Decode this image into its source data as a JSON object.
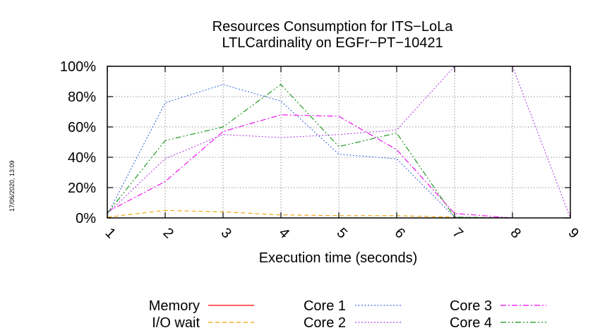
{
  "timestamp": "17/06/2020, 13:09",
  "chart_data": {
    "type": "line",
    "title": [
      "Resources Consumption for ITS−LoLa",
      "LTLCardinality on EGFr−PT−10421"
    ],
    "xlabel": "Execution time (seconds)",
    "ylabel": "",
    "x": [
      1,
      2,
      3,
      4,
      5,
      6,
      7,
      8,
      9
    ],
    "x_tick_labels": [
      "1",
      "2",
      "3",
      "4",
      "5",
      "6",
      "7",
      "8",
      "9"
    ],
    "xlim": [
      1,
      9
    ],
    "ylim": [
      0,
      100
    ],
    "y_ticks": [
      0,
      20,
      40,
      60,
      80,
      100
    ],
    "y_tick_labels": [
      "0%",
      "20%",
      "40%",
      "60%",
      "80%",
      "100%"
    ],
    "grid": true,
    "legend_position": "bottom",
    "series": [
      {
        "name": "Memory",
        "color": "#ff0000",
        "dash": "solid",
        "values": [
          null,
          null,
          null,
          null,
          null,
          null,
          null,
          null,
          null
        ]
      },
      {
        "name": "I/O wait",
        "color": "#f0a000",
        "dash": "dashed",
        "values": [
          0.5,
          5,
          4,
          2,
          1.5,
          1.5,
          0.5,
          0,
          0
        ]
      },
      {
        "name": "Core 1",
        "color": "#3c6ed8",
        "dash": "dotted",
        "values": [
          2,
          76,
          88,
          77,
          42,
          39,
          0.5,
          0,
          0
        ]
      },
      {
        "name": "Core 2",
        "color": "#b040e0",
        "dash": "dotted",
        "values": [
          3,
          39,
          55,
          53,
          55,
          58,
          100,
          100,
          0
        ]
      },
      {
        "name": "Core 3",
        "color": "#ee00ee",
        "dash": "dashdot",
        "values": [
          4,
          24,
          57,
          68,
          67,
          45,
          3,
          0,
          0
        ]
      },
      {
        "name": "Core 4",
        "color": "#109010",
        "dash": "dashdotdot",
        "values": [
          3,
          51,
          60,
          88,
          47,
          56,
          0.5,
          0,
          0
        ]
      }
    ]
  }
}
